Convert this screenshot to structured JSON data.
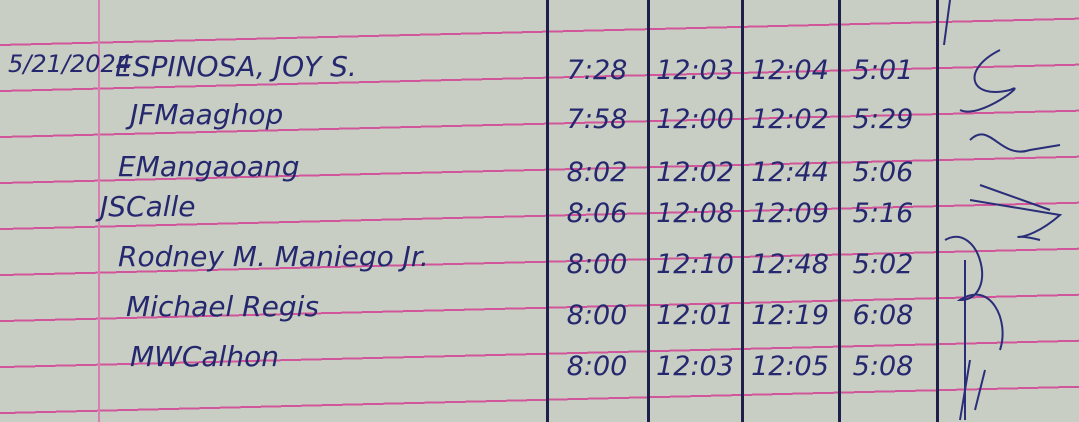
{
  "date": "5/21/2024",
  "entries": [
    {
      "name": "ESPINOSA, JOY S.",
      "time_in_am": "7:28",
      "time_out_am": "12:03",
      "time_in_pm": "12:04",
      "time_out_pm": "5:01"
    },
    {
      "name": "JFMaaghop",
      "time_in_am": "7:58",
      "time_out_am": "12:00",
      "time_in_pm": "12:02",
      "time_out_pm": "5:29"
    },
    {
      "name": "EMangaoang",
      "time_in_am": "8:02",
      "time_out_am": "12:02",
      "time_in_pm": "12:44",
      "time_out_pm": "5:06"
    },
    {
      "name": "JSCalle",
      "time_in_am": "8:06",
      "time_out_am": "12:08",
      "time_in_pm": "12:09",
      "time_out_pm": "5:16"
    },
    {
      "name": "Rodney M. Maniego Jr.",
      "time_in_am": "8:00",
      "time_out_am": "12:10",
      "time_in_pm": "12:48",
      "time_out_pm": "5:02"
    },
    {
      "name": "Michael Regis",
      "time_in_am": "8:00",
      "time_out_am": "12:01",
      "time_in_pm": "12:19",
      "time_out_pm": "6:08"
    },
    {
      "name": "MWCalhon",
      "time_in_am": "8:00",
      "time_out_am": "12:03",
      "time_in_pm": "12:05",
      "time_out_pm": "5:08"
    }
  ],
  "colors": {
    "paper": "#c8cec3",
    "rule": "#d0559a",
    "ink": "#25286e",
    "column_line": "#1e1f4a"
  }
}
